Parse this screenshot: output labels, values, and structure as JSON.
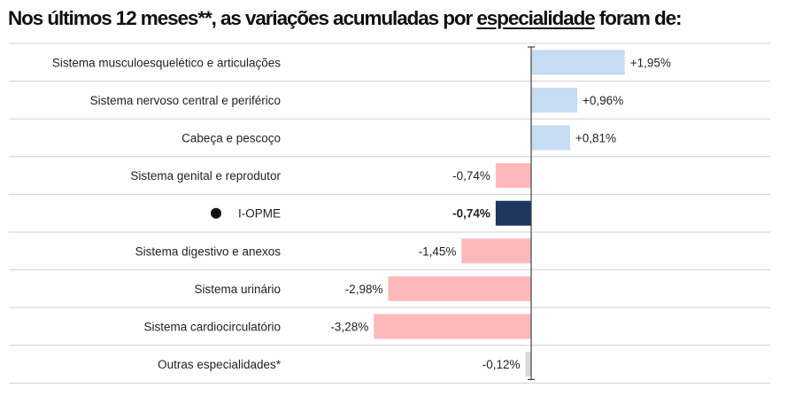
{
  "title": {
    "prefix": "Nos últimos 12 meses**, as variações acumuladas por",
    "underlined": "especialidade",
    "suffix": "foram de:"
  },
  "chart_data": {
    "type": "bar",
    "orientation": "horizontal",
    "title": "Nos últimos 12 meses**, as variações acumuladas por especialidade foram de:",
    "unit": "%",
    "categories": [
      "Sistema musculoesquelético e articulações",
      "Sistema nervoso central e periférico",
      "Cabeça e pescoço",
      "Sistema genital e reprodutor",
      "I-OPME",
      "Sistema digestivo e anexos",
      "Sistema urinário",
      "Sistema cardiocirculatório",
      "Outras especialidades*"
    ],
    "values": [
      1.95,
      0.96,
      0.81,
      -0.74,
      -0.74,
      -1.45,
      -2.98,
      -3.28,
      -0.12
    ],
    "value_labels": [
      "+1,95%",
      "+0,96%",
      "+0,81%",
      "-0,74%",
      "-0,74%",
      "-1,45%",
      "-2,98%",
      "-3,28%",
      "-0,12%"
    ],
    "highlighted": "I-OPME",
    "colors": {
      "positive": "#c5dcf2",
      "negative": "#fdb8bb",
      "highlight": "#1b365f",
      "other": "#d9d9d9",
      "axis": "#444444",
      "gridline": "#d0d0d0"
    },
    "grid": true
  }
}
